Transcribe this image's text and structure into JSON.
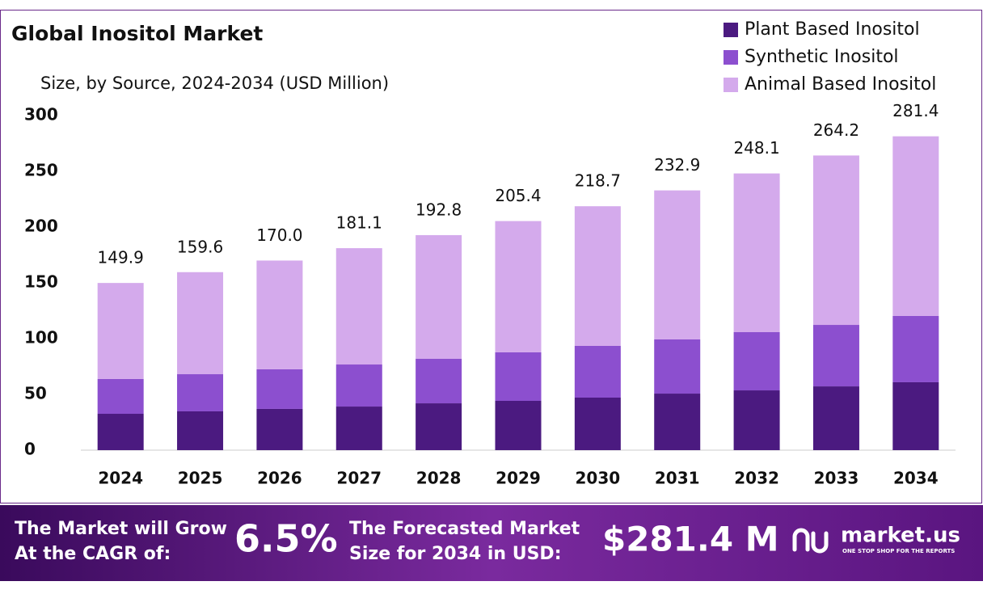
{
  "chart_data": {
    "type": "stacked_bar",
    "title": "Global Inositol Market",
    "subtitle": "Size, by Source, 2024-2034 (USD Million)",
    "categories": [
      "2024",
      "2025",
      "2026",
      "2027",
      "2028",
      "2029",
      "2030",
      "2031",
      "2032",
      "2033",
      "2034"
    ],
    "series": [
      {
        "name": "Plant Based Inositol",
        "color": "#4b1a80",
        "values": [
          32.6,
          34.8,
          37.0,
          39.1,
          42.0,
          44.2,
          47.1,
          50.7,
          53.6,
          57.2,
          60.9
        ]
      },
      {
        "name": "Synthetic Inositol",
        "color": "#8c4fcf",
        "values": [
          31.2,
          33.3,
          35.5,
          37.7,
          39.9,
          43.5,
          46.4,
          48.6,
          52.2,
          55.1,
          59.4
        ]
      },
      {
        "name": "Animal Based Inositol",
        "color": "#d4aaec",
        "values": [
          86.1,
          91.5,
          97.5,
          104.3,
          110.9,
          117.7,
          125.2,
          133.6,
          142.3,
          151.9,
          161.1
        ]
      }
    ],
    "totals": {
      "values": [
        149.9,
        159.6,
        170.0,
        181.1,
        192.8,
        205.4,
        218.7,
        232.9,
        248.1,
        264.2,
        281.4
      ],
      "value_labels": [
        "149.9",
        "159.6",
        "170.0",
        "181.1",
        "192.8",
        "205.4",
        "218.7",
        "232.9",
        "248.1",
        "264.2",
        "281.4"
      ]
    },
    "ylim": [
      0,
      300
    ],
    "yticks": [
      0,
      50,
      100,
      150,
      200,
      250,
      300
    ],
    "grid": false,
    "legend": "top-right"
  },
  "footer": {
    "cagr_text": [
      "The Market will Grow",
      "At the CAGR of:"
    ],
    "cagr_value": "6.5%",
    "forecast_text": [
      "The Forecasted Market",
      "Size for 2034 in USD:"
    ],
    "forecast_value": "$281.4 M",
    "brand": "market.us",
    "tagline": "ONE STOP SHOP FOR THE REPORTS"
  }
}
